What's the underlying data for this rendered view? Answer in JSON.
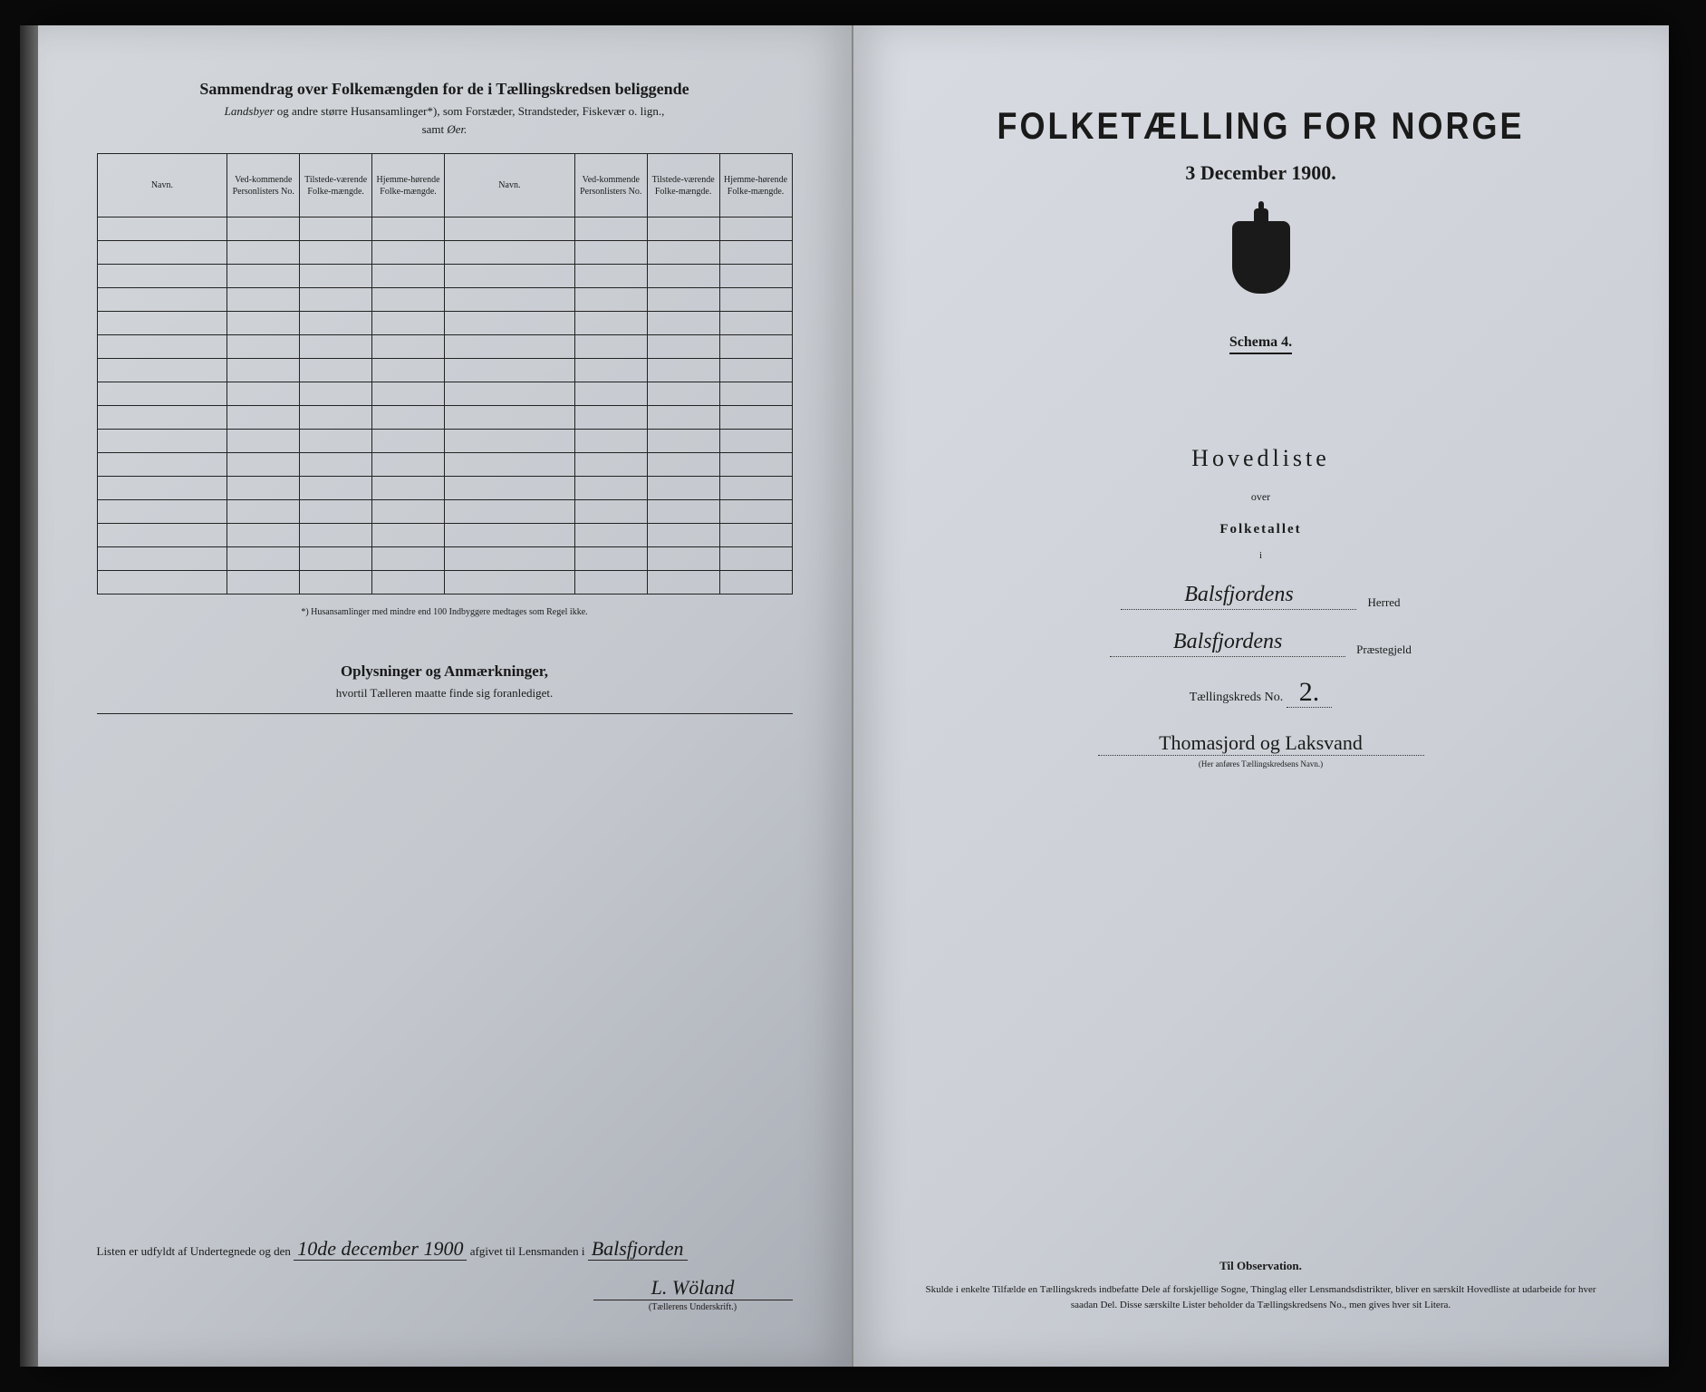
{
  "left": {
    "summary_title": "Sammendrag over Folkemængden for de i Tællingskredsen beliggende",
    "summary_subtitle_italic": "Landsbyer",
    "summary_subtitle_rest": " og andre større Husansamlinger*), som Forstæder, Strandsteder, Fiskevær o. lign.,",
    "summary_samt_prefix": "samt ",
    "summary_samt_italic": "Øer.",
    "table_headers": {
      "navn": "Navn.",
      "vedkom": "Ved-kommende Personlisters No.",
      "tilstede": "Tilstede-værende Folke-mængde.",
      "hjemme": "Hjemme-hørende Folke-mængde."
    },
    "footnote": "*) Husansamlinger med mindre end 100 Indbyggere medtages som Regel ikke.",
    "oplysninger_title": "Oplysninger og Anmærkninger,",
    "oplysninger_sub": "hvortil Tælleren maatte finde sig foranlediget.",
    "sig_prefix": "Listen er udfyldt af Undertegnede og den",
    "sig_date": "10de december 1900",
    "sig_mid": "afgivet til Lensmanden i",
    "sig_place": "Balsfjorden",
    "sig_name": "L. Wöland",
    "sig_caption": "(Tællerens Underskrift.)"
  },
  "right": {
    "title": "FOLKETÆLLING FOR NORGE",
    "date": "3 December 1900.",
    "schema": "Schema 4.",
    "hovedliste": "Hovedliste",
    "over": "over",
    "folketallet": "Folketallet",
    "i": "i",
    "herred_value": "Balsfjordens",
    "herred_label": "Herred",
    "prestegjeld_value": "Balsfjordens",
    "prestegjeld_label": "Præstegjeld",
    "kreds_label": "Tællingskreds No.",
    "kreds_no": "2.",
    "kreds_name": "Thomasjord og Laksvand",
    "kreds_caption": "(Her anføres Tællingskredsens Navn.)",
    "obs_title": "Til Observation.",
    "obs_body": "Skulde i enkelte Tilfælde en Tællingskreds indbefatte Dele af forskjellige Sogne, Thinglag eller Lensmandsdistrikter, bliver en særskilt Hovedliste at udarbeide for hver saadan Del. Disse særskilte Lister beholder da Tællingskredsens No., men gives hver sit Litera."
  },
  "table_rows": 16
}
